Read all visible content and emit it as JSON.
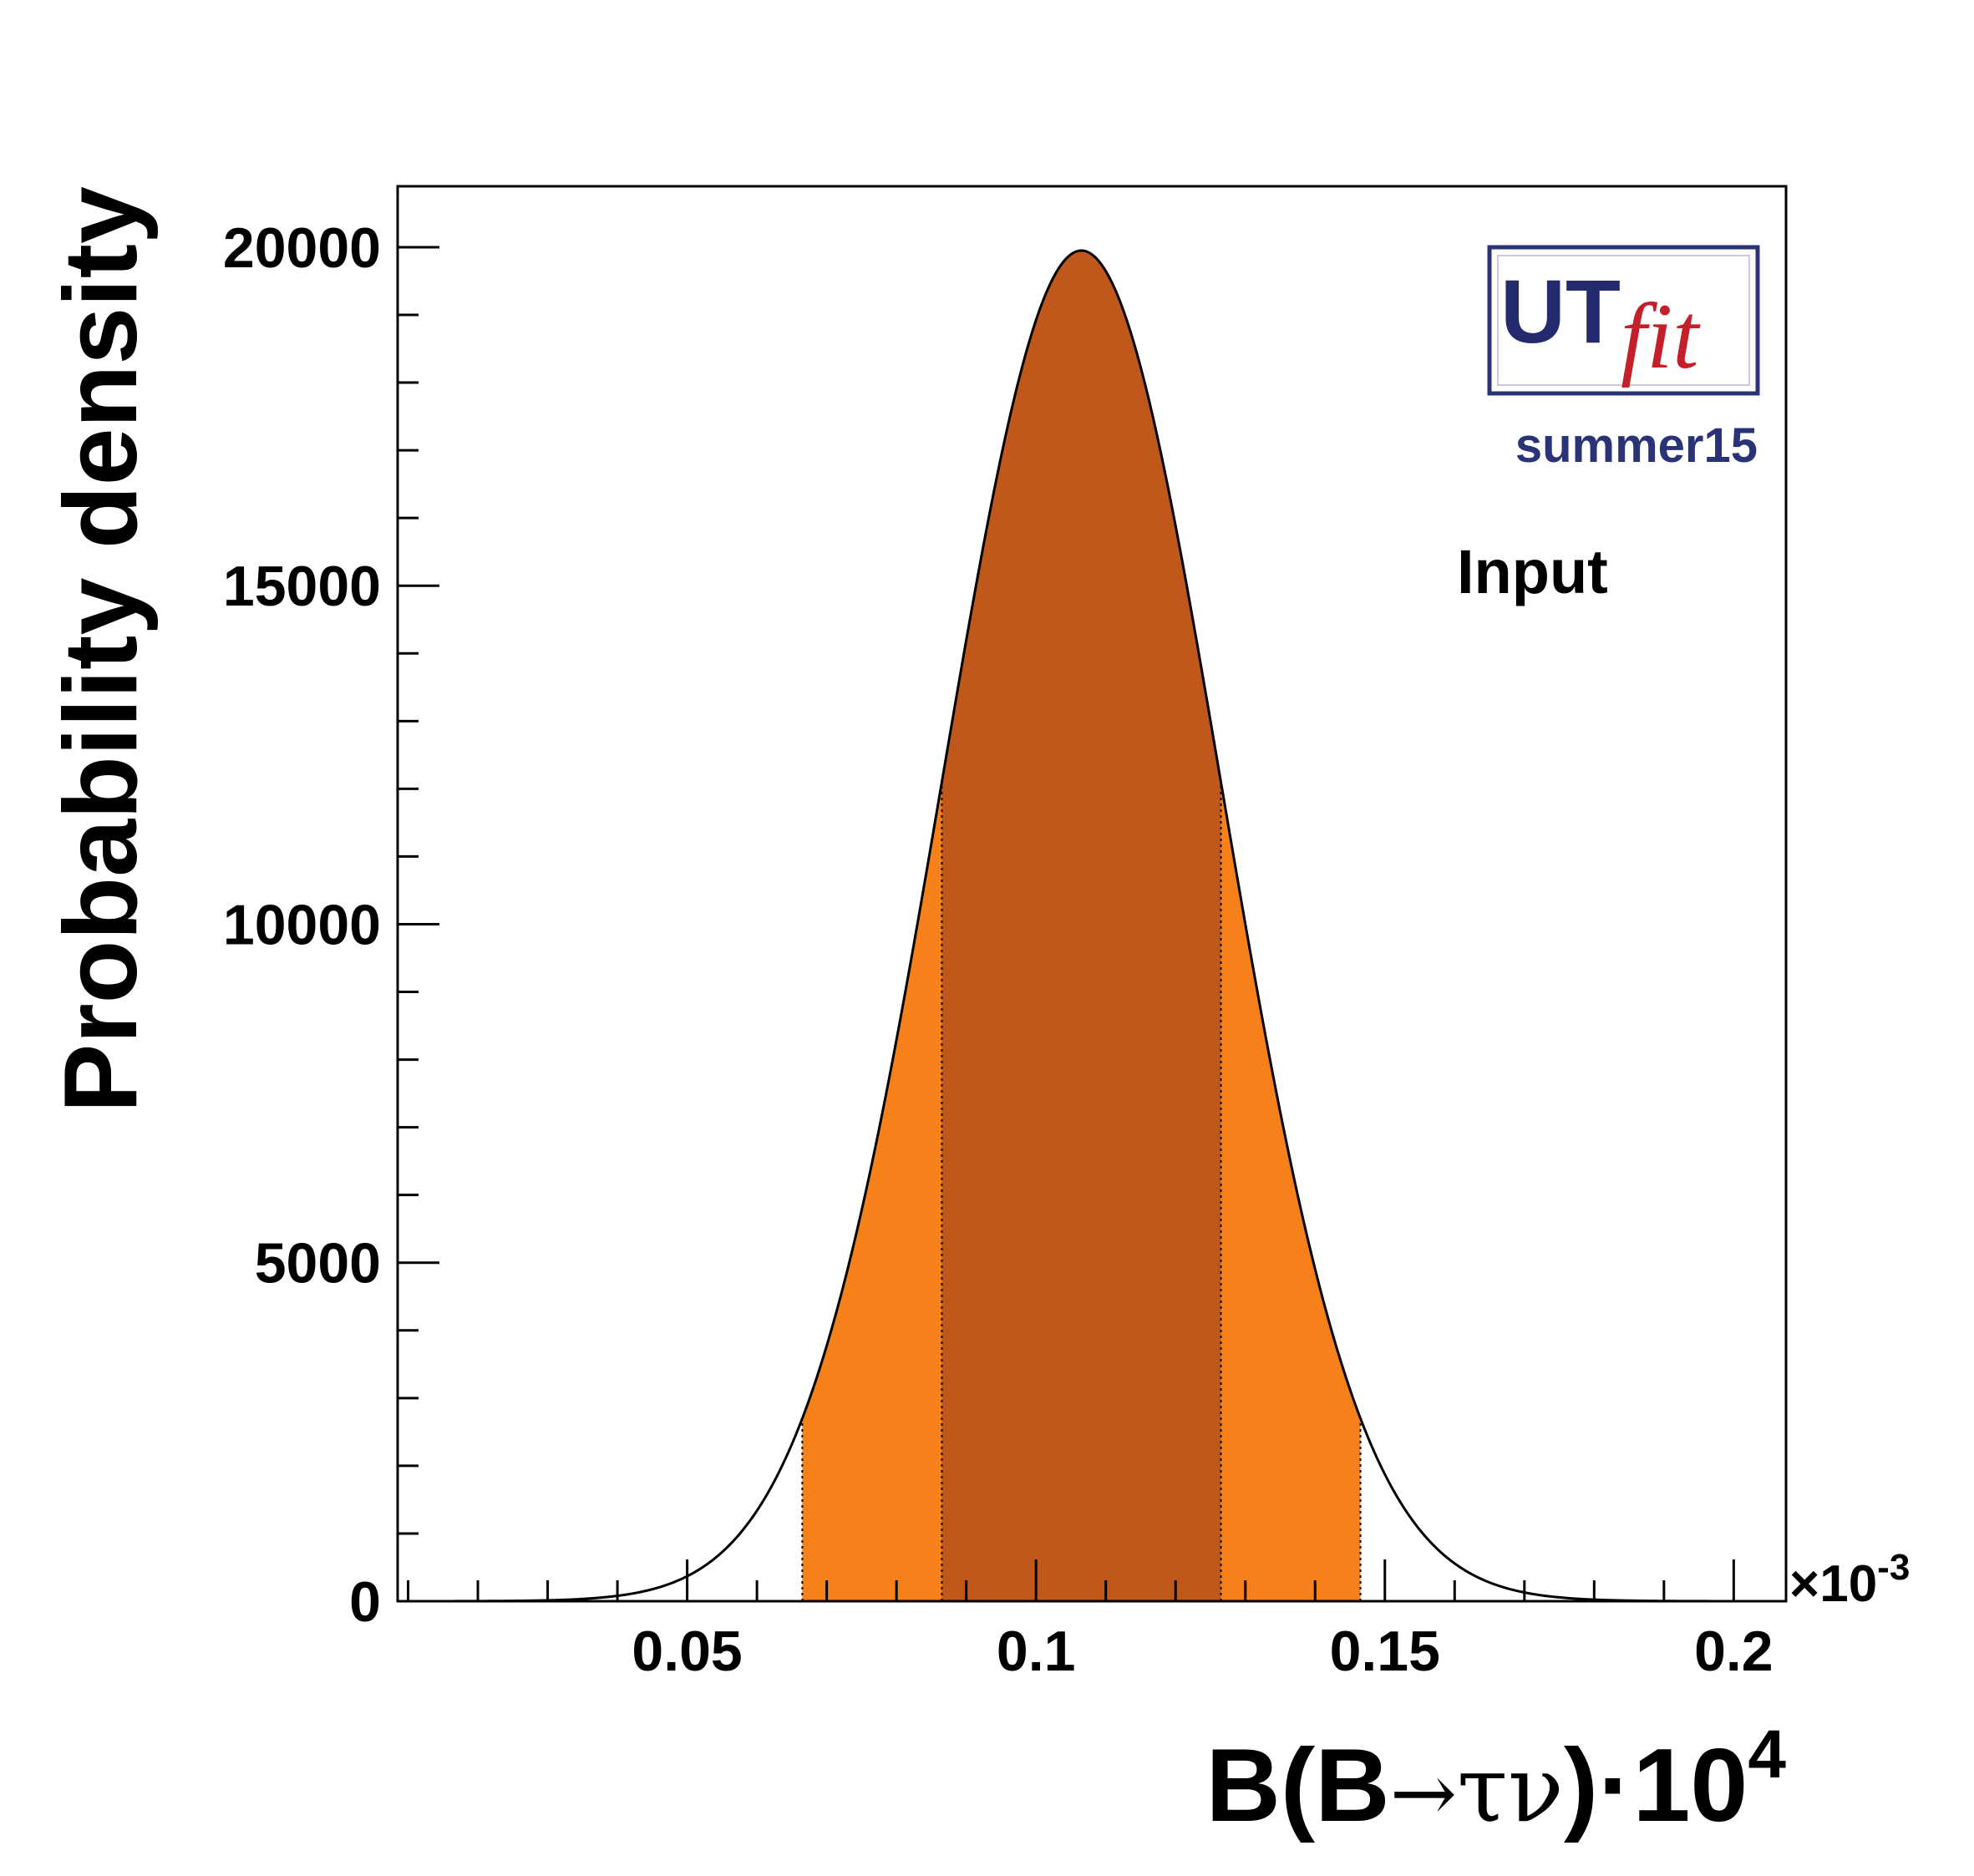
{
  "chart_data": {
    "type": "area",
    "title": "",
    "xlabel_main": "B(B",
    "xlabel_arrow": "→",
    "xlabel_greek": "τν",
    "xlabel_tail": ")·10",
    "xlabel_exp": "4",
    "ylabel": "Probability density",
    "x_multiplier_base": "×10",
    "x_multiplier_exp": "-3",
    "xlim": [
      0.0085,
      0.2075
    ],
    "ylim": [
      0,
      20900
    ],
    "x_ticks": [
      0.05,
      0.1,
      0.15,
      0.2
    ],
    "x_tick_labels": [
      "0.05",
      "0.1",
      "0.15",
      "0.2"
    ],
    "y_ticks": [
      0,
      5000,
      10000,
      15000,
      20000
    ],
    "y_tick_labels": [
      "0",
      "5000",
      "10000",
      "15000",
      "20000"
    ],
    "distribution": {
      "shape": "gaussian",
      "mean": 0.1065,
      "sigma": 0.02,
      "peak": 19950
    },
    "interval_68": [
      0.0865,
      0.1265
    ],
    "interval_95": [
      0.0665,
      0.1465
    ],
    "colors": {
      "curve": "#000000",
      "band_68": "#c0571b",
      "band_95": "#f6801a",
      "frame": "#000000"
    }
  },
  "logo": {
    "ut": "UT",
    "fit": "fit",
    "ut_color": "#232a6e",
    "fit_color": "#c4202a",
    "border_color": "#2b3377",
    "edition": "summer15",
    "edition_color": "#2b3377"
  },
  "label": "Input"
}
